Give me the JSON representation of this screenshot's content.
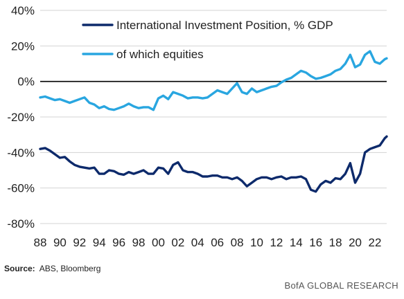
{
  "chart_data": {
    "type": "line",
    "x_tick_labels": [
      "88",
      "90",
      "92",
      "94",
      "96",
      "98",
      "00",
      "02",
      "04",
      "06",
      "08",
      "10",
      "12",
      "14",
      "16",
      "18",
      "20",
      "22"
    ],
    "y_tick_labels": [
      "40%",
      "20%",
      "0%",
      "-20%",
      "-40%",
      "-60%",
      "-80%"
    ],
    "y_ticks": [
      40,
      20,
      0,
      -20,
      -40,
      -60,
      -80
    ],
    "ylim": [
      -80,
      40
    ],
    "xlim": [
      1988,
      2023.2
    ],
    "zero_line": true,
    "grid": "horizontal",
    "legend_position": "top",
    "series": [
      {
        "name": "International Investment Position, % GDP",
        "color": "#0d2a6b",
        "points": [
          [
            1988.0,
            -38
          ],
          [
            1988.5,
            -37.5
          ],
          [
            1989.0,
            -39
          ],
          [
            1989.5,
            -41
          ],
          [
            1990.0,
            -43
          ],
          [
            1990.5,
            -42.5
          ],
          [
            1991.0,
            -45
          ],
          [
            1991.5,
            -47
          ],
          [
            1992.0,
            -48
          ],
          [
            1992.5,
            -48.5
          ],
          [
            1993.0,
            -49
          ],
          [
            1993.5,
            -48.5
          ],
          [
            1994.0,
            -52
          ],
          [
            1994.5,
            -52
          ],
          [
            1995.0,
            -50
          ],
          [
            1995.5,
            -50.5
          ],
          [
            1996.0,
            -52
          ],
          [
            1996.5,
            -52.5
          ],
          [
            1997.0,
            -51
          ],
          [
            1997.5,
            -52
          ],
          [
            1998.0,
            -51
          ],
          [
            1998.5,
            -50
          ],
          [
            1999.0,
            -52
          ],
          [
            1999.5,
            -52
          ],
          [
            2000.0,
            -48.5
          ],
          [
            2000.5,
            -49
          ],
          [
            2001.0,
            -52
          ],
          [
            2001.5,
            -47
          ],
          [
            2002.0,
            -45.5
          ],
          [
            2002.5,
            -50
          ],
          [
            2003.0,
            -51
          ],
          [
            2003.5,
            -51
          ],
          [
            2004.0,
            -52
          ],
          [
            2004.5,
            -53.5
          ],
          [
            2005.0,
            -53.5
          ],
          [
            2005.5,
            -53
          ],
          [
            2006.0,
            -53
          ],
          [
            2006.5,
            -54
          ],
          [
            2007.0,
            -54
          ],
          [
            2007.5,
            -55
          ],
          [
            2008.0,
            -54
          ],
          [
            2008.5,
            -56
          ],
          [
            2009.0,
            -59
          ],
          [
            2009.5,
            -57
          ],
          [
            2010.0,
            -55
          ],
          [
            2010.5,
            -54
          ],
          [
            2011.0,
            -54
          ],
          [
            2011.5,
            -55
          ],
          [
            2012.0,
            -54
          ],
          [
            2012.5,
            -53.5
          ],
          [
            2013.0,
            -55
          ],
          [
            2013.5,
            -54
          ],
          [
            2014.0,
            -54
          ],
          [
            2014.5,
            -53.5
          ],
          [
            2015.0,
            -55
          ],
          [
            2015.5,
            -61
          ],
          [
            2016.0,
            -62
          ],
          [
            2016.5,
            -58
          ],
          [
            2017.0,
            -56
          ],
          [
            2017.5,
            -57
          ],
          [
            2018.0,
            -54.5
          ],
          [
            2018.5,
            -55
          ],
          [
            2019.0,
            -52
          ],
          [
            2019.5,
            -46
          ],
          [
            2020.0,
            -57
          ],
          [
            2020.5,
            -52
          ],
          [
            2021.0,
            -40
          ],
          [
            2021.5,
            -38
          ],
          [
            2022.0,
            -37
          ],
          [
            2022.5,
            -36
          ],
          [
            2023.0,
            -32
          ],
          [
            2023.2,
            -31
          ]
        ]
      },
      {
        "name": "of which equities",
        "color": "#29a6e0",
        "points": [
          [
            1988.0,
            -9
          ],
          [
            1988.5,
            -8.5
          ],
          [
            1989.0,
            -9.5
          ],
          [
            1989.5,
            -10.5
          ],
          [
            1990.0,
            -10
          ],
          [
            1990.5,
            -11
          ],
          [
            1991.0,
            -12
          ],
          [
            1991.5,
            -11
          ],
          [
            1992.0,
            -10
          ],
          [
            1992.5,
            -9
          ],
          [
            1993.0,
            -12
          ],
          [
            1993.5,
            -13
          ],
          [
            1994.0,
            -15
          ],
          [
            1994.5,
            -14
          ],
          [
            1995.0,
            -15.5
          ],
          [
            1995.5,
            -16
          ],
          [
            1996.0,
            -15
          ],
          [
            1996.5,
            -14
          ],
          [
            1997.0,
            -12.5
          ],
          [
            1997.5,
            -14
          ],
          [
            1998.0,
            -15
          ],
          [
            1998.5,
            -14.5
          ],
          [
            1999.0,
            -14.5
          ],
          [
            1999.5,
            -16
          ],
          [
            2000.0,
            -9.5
          ],
          [
            2000.5,
            -8
          ],
          [
            2001.0,
            -10
          ],
          [
            2001.5,
            -6
          ],
          [
            2002.0,
            -7
          ],
          [
            2002.5,
            -8
          ],
          [
            2003.0,
            -9.5
          ],
          [
            2003.5,
            -9
          ],
          [
            2004.0,
            -9
          ],
          [
            2004.5,
            -9.5
          ],
          [
            2005.0,
            -9
          ],
          [
            2005.5,
            -7
          ],
          [
            2006.0,
            -5
          ],
          [
            2006.5,
            -6
          ],
          [
            2007.0,
            -7
          ],
          [
            2007.5,
            -4
          ],
          [
            2008.0,
            -1
          ],
          [
            2008.5,
            -6
          ],
          [
            2009.0,
            -7
          ],
          [
            2009.5,
            -4
          ],
          [
            2010.0,
            -6
          ],
          [
            2010.5,
            -5
          ],
          [
            2011.0,
            -4
          ],
          [
            2011.5,
            -3
          ],
          [
            2012.0,
            -2.5
          ],
          [
            2012.5,
            -0.5
          ],
          [
            2013.0,
            1
          ],
          [
            2013.5,
            2
          ],
          [
            2014.0,
            4
          ],
          [
            2014.5,
            6
          ],
          [
            2015.0,
            5
          ],
          [
            2015.5,
            3
          ],
          [
            2016.0,
            1.5
          ],
          [
            2016.5,
            2
          ],
          [
            2017.0,
            3
          ],
          [
            2017.5,
            4
          ],
          [
            2018.0,
            6
          ],
          [
            2018.5,
            7
          ],
          [
            2019.0,
            10
          ],
          [
            2019.5,
            15
          ],
          [
            2020.0,
            8
          ],
          [
            2020.5,
            9.5
          ],
          [
            2021.0,
            15
          ],
          [
            2021.5,
            17
          ],
          [
            2022.0,
            11
          ],
          [
            2022.5,
            10
          ],
          [
            2023.0,
            12.5
          ],
          [
            2023.2,
            13
          ]
        ]
      }
    ]
  },
  "source": {
    "label": "Source:",
    "text": "ABS, Bloomberg"
  },
  "footer": "BofA GLOBAL RESEARCH"
}
